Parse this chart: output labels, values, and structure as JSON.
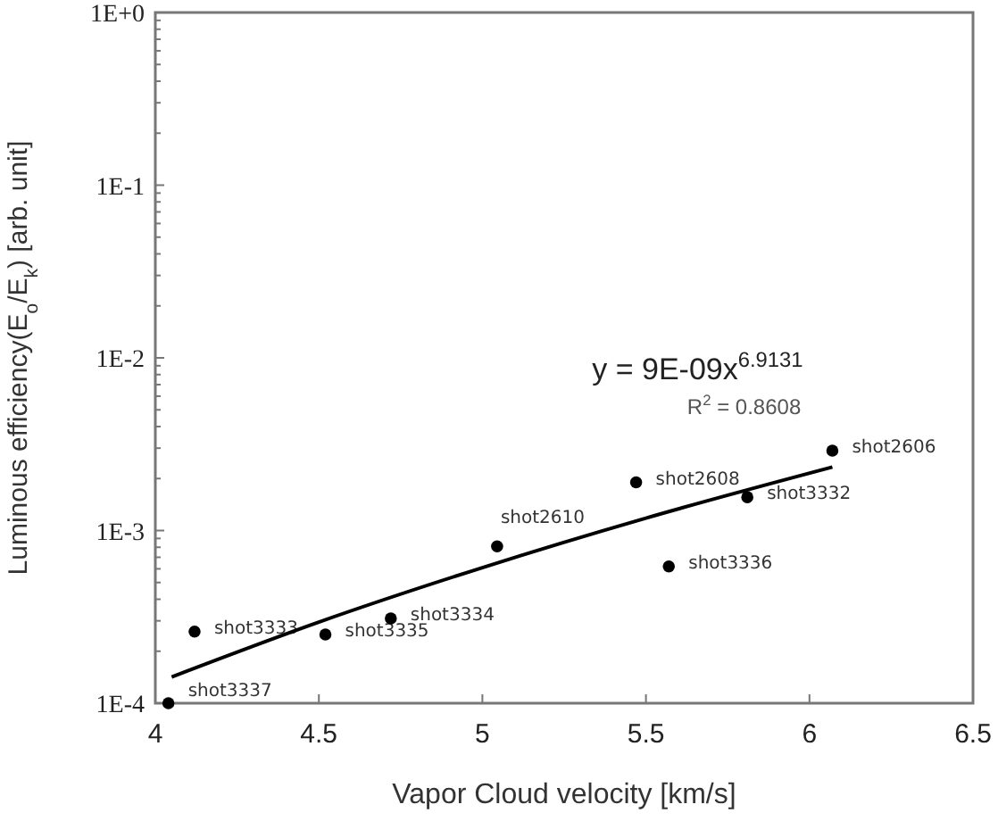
{
  "chart_data": {
    "type": "scatter",
    "xlabel": "Vapor Cloud velocity [km/s]",
    "ylabel": "Luminous efficiency(E$_{o}$/E$_{k}$) [arb. unit]",
    "log": "y",
    "grid": false,
    "xlim": [
      4,
      6.5
    ],
    "xticks": [
      4,
      4.5,
      5,
      5.5,
      6,
      6.5
    ],
    "ylim": [
      0.0001,
      1
    ],
    "yticks": [
      {
        "value": 0.0001,
        "label": "1E-4"
      },
      {
        "value": 0.0002,
        "label": null
      },
      {
        "value": 0.0003,
        "label": null
      },
      {
        "value": 0.0004,
        "label": null
      },
      {
        "value": 0.0005,
        "label": null
      },
      {
        "value": 0.0006,
        "label": null
      },
      {
        "value": 0.0007,
        "label": null
      },
      {
        "value": 0.0008,
        "label": null
      },
      {
        "value": 0.0009,
        "label": null
      },
      {
        "value": 0.001,
        "label": "1E-3"
      },
      {
        "value": 0.002,
        "label": null
      },
      {
        "value": 0.003,
        "label": null
      },
      {
        "value": 0.004,
        "label": null
      },
      {
        "value": 0.005,
        "label": null
      },
      {
        "value": 0.006,
        "label": null
      },
      {
        "value": 0.007,
        "label": null
      },
      {
        "value": 0.008,
        "label": null
      },
      {
        "value": 0.009,
        "label": null
      },
      {
        "value": 0.01,
        "label": "1E-2"
      },
      {
        "value": 0.02,
        "label": null
      },
      {
        "value": 0.03,
        "label": null
      },
      {
        "value": 0.04,
        "label": null
      },
      {
        "value": 0.05,
        "label": null
      },
      {
        "value": 0.06,
        "label": null
      },
      {
        "value": 0.07,
        "label": null
      },
      {
        "value": 0.08,
        "label": null
      },
      {
        "value": 0.09,
        "label": null
      },
      {
        "value": 0.1,
        "label": "1E-1"
      },
      {
        "value": 0.2,
        "label": null
      },
      {
        "value": 0.3,
        "label": null
      },
      {
        "value": 0.4,
        "label": null
      },
      {
        "value": 0.5,
        "label": null
      },
      {
        "value": 0.6,
        "label": null
      },
      {
        "value": 0.7,
        "label": null
      },
      {
        "value": 0.8,
        "label": null
      },
      {
        "value": 0.9,
        "label": null
      },
      {
        "value": 1,
        "label": "1E+0"
      }
    ],
    "series": [
      {
        "marker": "circle",
        "color": "#000000",
        "x": [
          4.04,
          4.12,
          4.52,
          4.72,
          5.045,
          5.47,
          5.57,
          5.81,
          6.07
        ],
        "values": [
          0.0001,
          0.00026,
          0.00025,
          0.00031,
          0.00081,
          0.0019,
          0.00062,
          0.00156,
          0.0029
        ],
        "value_labels": [
          "shot3337",
          "shot3333",
          "shot3335",
          "shot3334",
          "shot2610",
          "shot2608",
          "shot3336",
          "shot3332",
          "shot2606"
        ]
      },
      {
        "type": "line",
        "marker": "none",
        "color": "#000000",
        "x": [
          4.05,
          4.5,
          5,
          5.5,
          6.07
        ],
        "values": [
          0.000142,
          0.000295,
          0.00061,
          0.00118,
          0.00233
        ]
      }
    ],
    "annotations": [
      "y = 9E-09x$^{6.9131}$",
      "R$^{2}$ = 0.8608"
    ]
  }
}
